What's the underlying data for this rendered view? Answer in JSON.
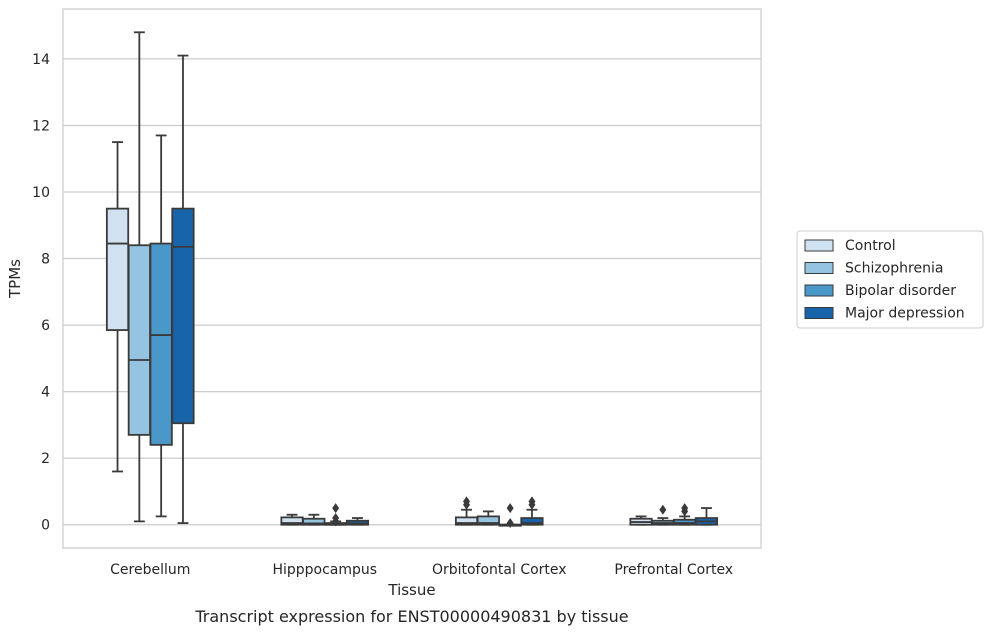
{
  "caption": "Transcript expression for ENST00000490831 by tissue",
  "chart_data": {
    "type": "box",
    "xlabel": "Tissue",
    "ylabel": "TPMs",
    "ylim": [
      -0.7,
      15.5
    ],
    "yticks": [
      0,
      2,
      4,
      6,
      8,
      10,
      12,
      14
    ],
    "grid": "horizontal",
    "legend_position": "right",
    "categories": [
      "Cerebellum",
      "Hipppocampus",
      "Orbitofontal Cortex",
      "Prefrontal Cortex"
    ],
    "series": [
      {
        "name": "Control",
        "color": "#d0e1f2",
        "boxes": [
          {
            "min": 1.6,
            "q1": 5.85,
            "median": 8.45,
            "q3": 9.5,
            "max": 11.5,
            "outliers": []
          },
          {
            "min": 0.0,
            "q1": 0.0,
            "median": 0.05,
            "q3": 0.22,
            "max": 0.3,
            "outliers": []
          },
          {
            "min": 0.0,
            "q1": 0.0,
            "median": 0.05,
            "q3": 0.22,
            "max": 0.45,
            "outliers": [
              0.6,
              0.7
            ]
          },
          {
            "min": 0.0,
            "q1": 0.0,
            "median": 0.08,
            "q3": 0.18,
            "max": 0.25,
            "outliers": []
          }
        ]
      },
      {
        "name": "Schizophrenia",
        "color": "#94c4df",
        "boxes": [
          {
            "min": 0.1,
            "q1": 2.7,
            "median": 4.95,
            "q3": 8.4,
            "max": 14.8,
            "outliers": []
          },
          {
            "min": 0.0,
            "q1": 0.0,
            "median": 0.04,
            "q3": 0.18,
            "max": 0.3,
            "outliers": []
          },
          {
            "min": 0.0,
            "q1": 0.0,
            "median": 0.05,
            "q3": 0.25,
            "max": 0.4,
            "outliers": []
          },
          {
            "min": 0.0,
            "q1": 0.0,
            "median": 0.05,
            "q3": 0.12,
            "max": 0.2,
            "outliers": [
              0.45
            ]
          }
        ]
      },
      {
        "name": "Bipolar disorder",
        "color": "#4a98c9",
        "boxes": [
          {
            "min": 0.25,
            "q1": 2.4,
            "median": 5.7,
            "q3": 8.45,
            "max": 11.7,
            "outliers": []
          },
          {
            "min": 0.0,
            "q1": 0.0,
            "median": 0.0,
            "q3": 0.05,
            "max": 0.1,
            "outliers": [
              0.1,
              0.2,
              0.5
            ]
          },
          {
            "min": 0.0,
            "q1": 0.0,
            "median": 0.0,
            "q3": 0.0,
            "max": 0.0,
            "outliers": [
              0.05,
              0.5
            ]
          },
          {
            "min": 0.0,
            "q1": 0.0,
            "median": 0.05,
            "q3": 0.15,
            "max": 0.25,
            "outliers": [
              0.4,
              0.5
            ]
          }
        ]
      },
      {
        "name": "Major depression",
        "color": "#1764ab",
        "boxes": [
          {
            "min": 0.05,
            "q1": 3.05,
            "median": 8.35,
            "q3": 9.5,
            "max": 14.1,
            "outliers": []
          },
          {
            "min": 0.0,
            "q1": 0.0,
            "median": 0.04,
            "q3": 0.12,
            "max": 0.2,
            "outliers": []
          },
          {
            "min": 0.0,
            "q1": 0.0,
            "median": 0.05,
            "q3": 0.2,
            "max": 0.45,
            "outliers": [
              0.6,
              0.7
            ]
          },
          {
            "min": 0.0,
            "q1": 0.0,
            "median": 0.1,
            "q3": 0.2,
            "max": 0.5,
            "outliers": []
          }
        ]
      }
    ]
  }
}
